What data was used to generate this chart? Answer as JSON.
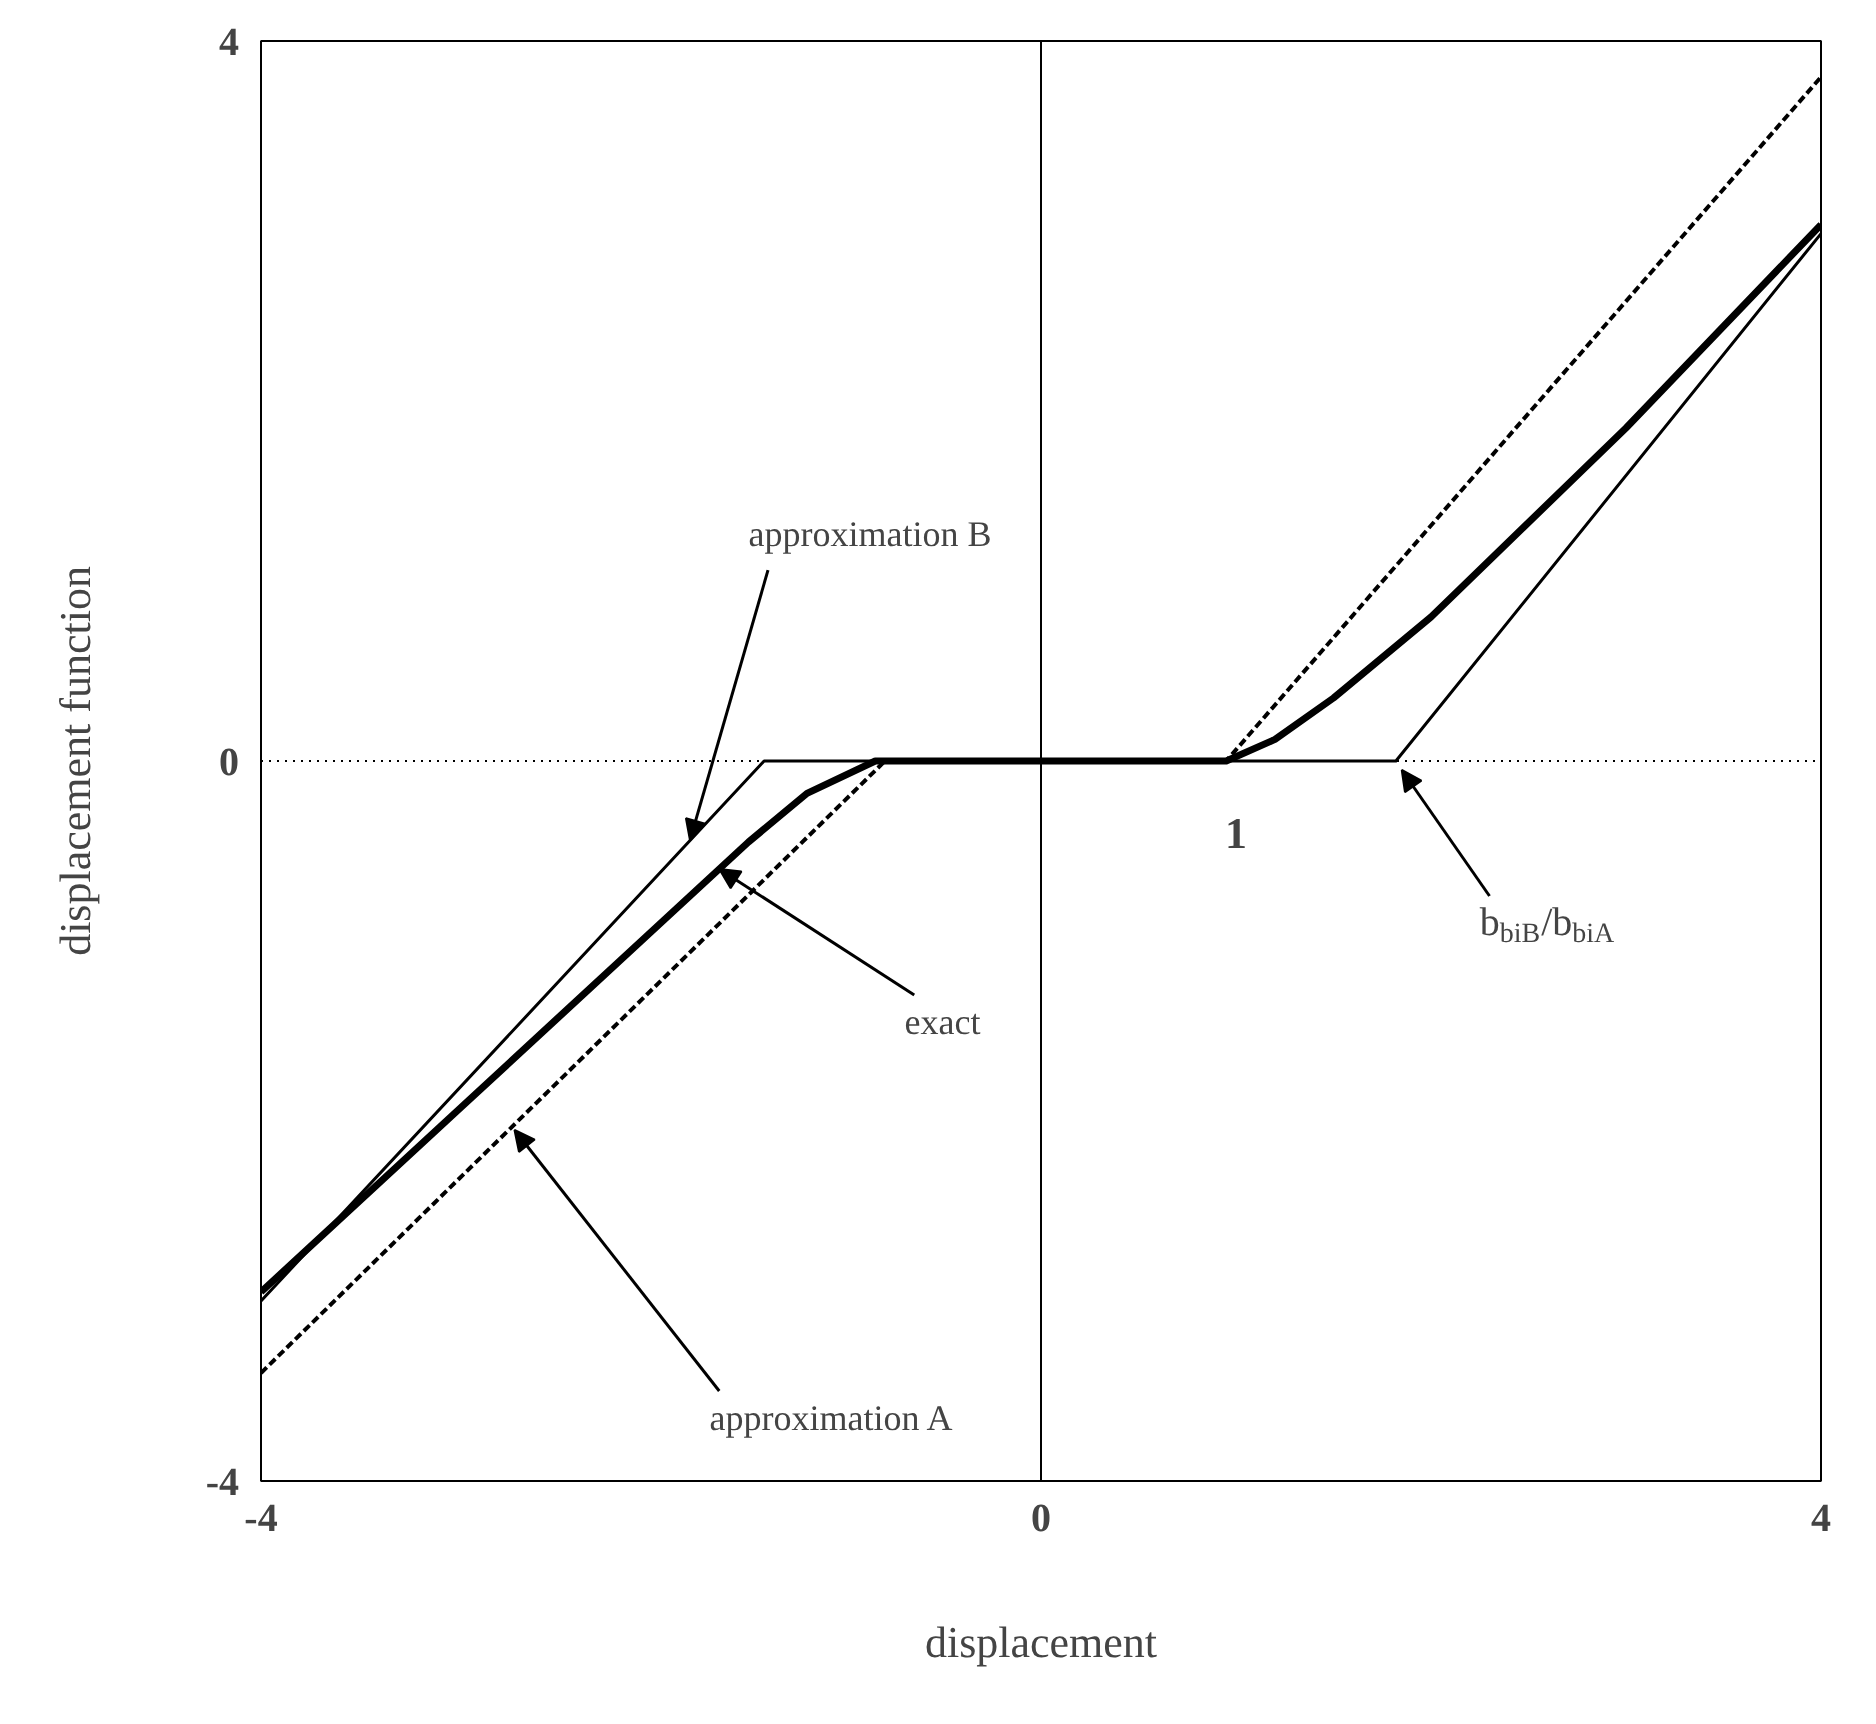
{
  "chart_data": {
    "type": "line",
    "xlabel": "displacement",
    "ylabel": "displacement function",
    "xlim": [
      -4,
      4
    ],
    "ylim": [
      -4,
      4
    ],
    "xticks": [
      -4,
      0,
      4
    ],
    "yticks": [
      -4,
      0,
      4
    ],
    "grid": false,
    "marker": "none",
    "series": [
      {
        "color": "#000000",
        "line_style": "dashed",
        "x": [
          -4,
          -0.8,
          0.95,
          4
        ],
        "values": [
          -3.4,
          0,
          0,
          3.8
        ]
      },
      {
        "color": "#000000",
        "line_style": "solid",
        "x": [
          -4,
          -1.42,
          1.82,
          4
        ],
        "values": [
          -3.0,
          0,
          0,
          2.93
        ]
      },
      {
        "color": "#000000",
        "line_style": "solid",
        "x": [
          -4,
          -3,
          -2,
          -1.5,
          -1.2,
          -0.85,
          0.95,
          1.2,
          1.5,
          2,
          3,
          4
        ],
        "values": [
          -2.95,
          -1.95,
          -0.95,
          -0.45,
          -0.18,
          0,
          0,
          0.12,
          0.35,
          0.8,
          1.85,
          2.98
        ]
      }
    ],
    "ref_lines": [
      {
        "axis": "y",
        "value": 0,
        "line_style": "dotted",
        "color": "#000000"
      },
      {
        "axis": "x",
        "value": 0,
        "line_style": "solid",
        "color": "#000000"
      }
    ],
    "annotations": [
      {
        "text": "approximation B",
        "x": -1.8,
        "y": -0.44
      },
      {
        "text": "exact",
        "x": -1.65,
        "y": -0.6
      },
      {
        "text": "approximation A",
        "x": -2.7,
        "y": -2.05
      },
      {
        "text": "b$_{biB}$/b$_{biA}$",
        "x": 1.85,
        "y": -0.05
      },
      {
        "text": "1",
        "x": 1.0,
        "y": 0
      }
    ]
  }
}
